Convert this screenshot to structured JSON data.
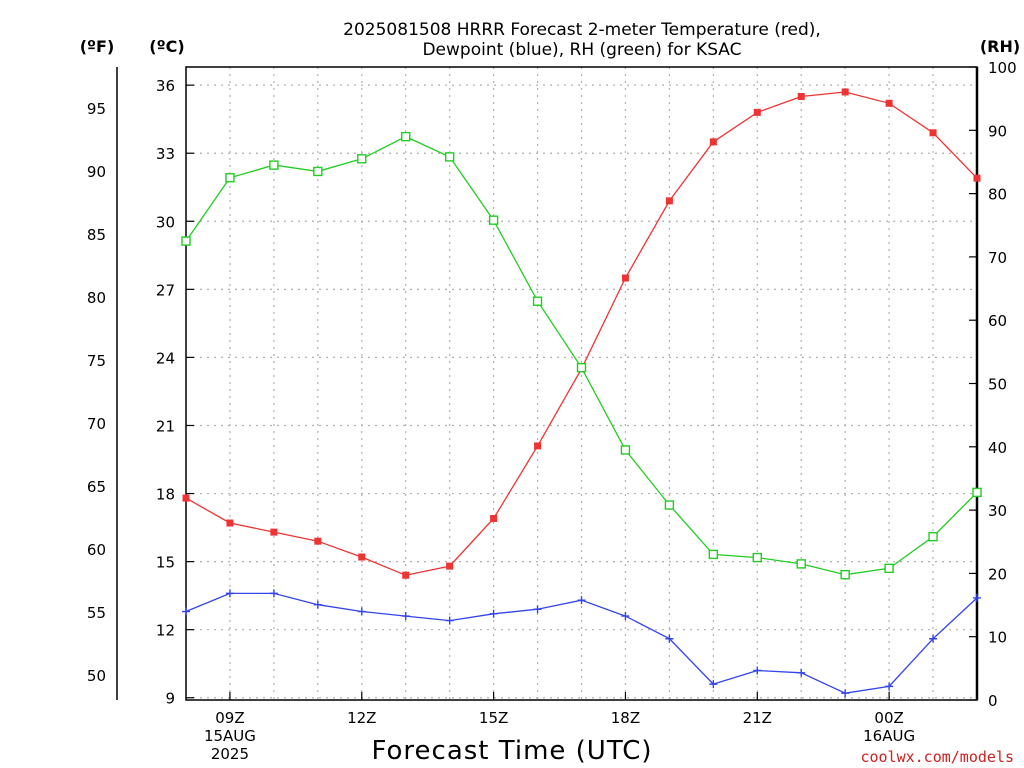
{
  "chart_data": {
    "type": "line",
    "title": [
      "2025081508 HRRR Forecast 2-meter Temperature (red),",
      "Dewpoint (blue), RH (green) for KSAC"
    ],
    "xlabel": "Forecast Time (UTC)",
    "unit_labels": {
      "f": "(ºF)",
      "c": "(ºC)",
      "rh": "(RH)"
    },
    "credit": "coolwx.com/models",
    "x": [
      "08Z",
      "09Z",
      "10Z",
      "11Z",
      "12Z",
      "13Z",
      "14Z",
      "15Z",
      "16Z",
      "17Z",
      "18Z",
      "19Z",
      "20Z",
      "21Z",
      "22Z",
      "23Z",
      "00Z",
      "01Z",
      "02Z"
    ],
    "x_ticks": [
      {
        "x": "09Z",
        "lines": [
          "09Z",
          "15AUG",
          "2025"
        ]
      },
      {
        "x": "12Z",
        "lines": [
          "12Z"
        ]
      },
      {
        "x": "15Z",
        "lines": [
          "15Z"
        ]
      },
      {
        "x": "18Z",
        "lines": [
          "18Z"
        ]
      },
      {
        "x": "21Z",
        "lines": [
          "21Z"
        ]
      },
      {
        "x": "00Z",
        "lines": [
          "00Z",
          "16AUG"
        ]
      }
    ],
    "y_c_ticks": [
      9,
      12,
      15,
      18,
      21,
      24,
      27,
      30,
      33,
      36
    ],
    "y_f_ticks": [
      50,
      55,
      60,
      65,
      70,
      75,
      80,
      85,
      90,
      95
    ],
    "y_rh_ticks": [
      0,
      10,
      20,
      30,
      40,
      50,
      60,
      70,
      80,
      90,
      100
    ],
    "ylim_c": [
      8.9,
      36.8
    ],
    "ylim_rh": [
      0,
      100
    ],
    "grid": true,
    "series": [
      {
        "name": "Temperature",
        "axis": "c",
        "color": "#ee3333",
        "marker": "filled-square",
        "values": [
          17.8,
          16.7,
          16.3,
          15.9,
          15.2,
          14.4,
          14.8,
          16.9,
          20.1,
          23.5,
          27.5,
          30.9,
          33.5,
          34.8,
          35.5,
          35.7,
          35.2,
          33.9,
          31.9
        ]
      },
      {
        "name": "Dewpoint",
        "axis": "c",
        "color": "#3344ee",
        "marker": "plus",
        "values": [
          12.8,
          13.6,
          13.6,
          13.1,
          12.8,
          12.6,
          12.4,
          12.7,
          12.9,
          13.3,
          12.6,
          11.6,
          9.6,
          10.2,
          10.1,
          9.2,
          9.5,
          11.6,
          13.4
        ]
      },
      {
        "name": "RH",
        "axis": "rh",
        "color": "#22cc22",
        "marker": "open-square",
        "values": [
          72.5,
          82.5,
          84.5,
          83.5,
          85.5,
          89.0,
          85.8,
          75.8,
          63.0,
          52.5,
          39.5,
          30.8,
          23.0,
          22.5,
          21.5,
          19.8,
          20.8,
          25.8,
          32.8
        ]
      }
    ],
    "colors": {
      "axis": "#000000",
      "grid": "#b0b0b0",
      "text": "#000000",
      "credit": "#cc2222"
    }
  }
}
